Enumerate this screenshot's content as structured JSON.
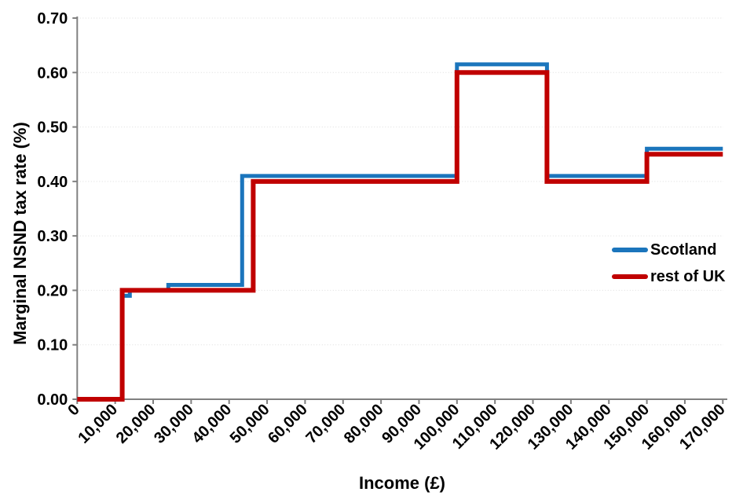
{
  "chart_data": {
    "type": "line",
    "subtype": "step",
    "title": "",
    "xlabel": "Income (£)",
    "ylabel": "Marginal NSND tax rate (%)",
    "xlim": [
      0,
      170000
    ],
    "ylim": [
      0,
      0.7
    ],
    "grid": "horizontal-dotted",
    "legend_position": "middle-right",
    "x_ticks": {
      "values": [
        0,
        10000,
        20000,
        30000,
        40000,
        50000,
        60000,
        70000,
        80000,
        90000,
        100000,
        110000,
        120000,
        130000,
        140000,
        150000,
        160000,
        170000
      ],
      "labels": [
        "0",
        "10,000",
        "20,000",
        "30,000",
        "40,000",
        "50,000",
        "60,000",
        "70,000",
        "80,000",
        "90,000",
        "100,000",
        "110,000",
        "120,000",
        "130,000",
        "140,000",
        "150,000",
        "160,000",
        "170,000"
      ]
    },
    "y_ticks": {
      "values": [
        0.0,
        0.1,
        0.2,
        0.3,
        0.4,
        0.5,
        0.6,
        0.7
      ],
      "labels": [
        "0.00",
        "0.10",
        "0.20",
        "0.30",
        "0.40",
        "0.50",
        "0.60",
        "0.70"
      ]
    },
    "series": [
      {
        "name": "Scotland",
        "color": "#1b75bc",
        "line_width": 5,
        "points": [
          [
            0,
            0
          ],
          [
            11850,
            0
          ],
          [
            11850,
            0.19
          ],
          [
            13850,
            0.19
          ],
          [
            13850,
            0.2
          ],
          [
            24000,
            0.2
          ],
          [
            24000,
            0.21
          ],
          [
            43430,
            0.21
          ],
          [
            43430,
            0.41
          ],
          [
            100000,
            0.41
          ],
          [
            100000,
            0.615
          ],
          [
            123700,
            0.615
          ],
          [
            123700,
            0.41
          ],
          [
            150000,
            0.41
          ],
          [
            150000,
            0.46
          ],
          [
            170000,
            0.46
          ]
        ]
      },
      {
        "name": "rest of UK",
        "color": "#c00000",
        "line_width": 6,
        "points": [
          [
            0,
            0
          ],
          [
            11850,
            0
          ],
          [
            11850,
            0.2
          ],
          [
            46350,
            0.2
          ],
          [
            46350,
            0.4
          ],
          [
            100000,
            0.4
          ],
          [
            100000,
            0.6
          ],
          [
            123700,
            0.6
          ],
          [
            123700,
            0.4
          ],
          [
            150000,
            0.4
          ],
          [
            150000,
            0.45
          ],
          [
            170000,
            0.45
          ]
        ]
      }
    ],
    "colors": {
      "axis": "#808080",
      "gridline": "#dddddd",
      "text": "#000000"
    }
  },
  "legend": {
    "items": [
      {
        "label": "Scotland",
        "color": "#1b75bc"
      },
      {
        "label": "rest of UK",
        "color": "#c00000"
      }
    ]
  }
}
